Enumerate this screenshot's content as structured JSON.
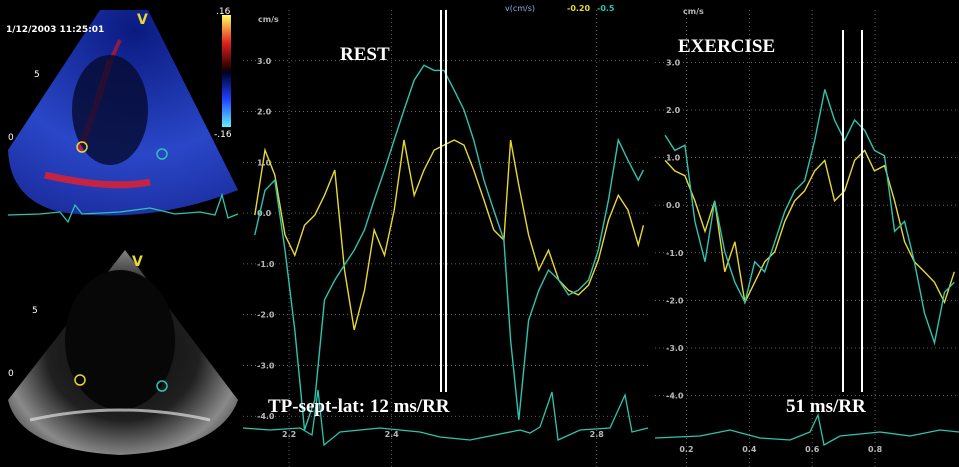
{
  "left_panel": {
    "timestamp": "1/12/2003 11:25:01",
    "doppler_marker": "V",
    "color_max": ".16",
    "color_min": "-.16",
    "doppler_depth_5": "5",
    "doppler_depth_0": "0",
    "bmode_marker": "V",
    "bmode_depth_5": "5",
    "bmode_depth_0": "0"
  },
  "readout": {
    "label": "v(cm/s)",
    "septal": "-0.20",
    "lateral": "-0.5"
  },
  "chart_data": [
    {
      "type": "line",
      "title": "REST",
      "annotation": "TP-sept-lat: 12 ms/RR",
      "ylabel": "cm/s",
      "grid": true,
      "xlim": [
        2.11,
        2.9
      ],
      "ylim": [
        -5,
        4
      ],
      "xticks": [
        2.2,
        2.4,
        2.8
      ],
      "yticks": [
        {
          "value": 3,
          "label": "3.0"
        },
        {
          "value": 2,
          "label": "2.0"
        },
        {
          "value": 1,
          "label": "1.0"
        },
        {
          "value": 0,
          "label": "0.0"
        },
        {
          "value": -1,
          "label": "-1.0"
        },
        {
          "value": -2,
          "label": "-2.0"
        },
        {
          "value": -3,
          "label": "-3.0"
        },
        {
          "value": -4,
          "label": "-4.0"
        }
      ],
      "x": [
        2.133,
        2.153,
        2.172,
        2.192,
        2.211,
        2.23,
        2.25,
        2.269,
        2.289,
        2.308,
        2.327,
        2.347,
        2.366,
        2.386,
        2.405,
        2.424,
        2.444,
        2.463,
        2.483,
        2.502,
        2.522,
        2.541,
        2.56,
        2.58,
        2.599,
        2.619,
        2.632,
        2.648,
        2.667,
        2.687,
        2.706,
        2.726,
        2.745,
        2.764,
        2.784,
        2.803,
        2.823,
        2.842,
        2.861,
        2.881,
        2.891
      ],
      "series": [
        {
          "color": "#e8d830",
          "values": [
            -0.04,
            1.24,
            0.75,
            -0.43,
            -0.83,
            -0.24,
            -0.04,
            0.35,
            0.85,
            -1.12,
            -2.3,
            -1.52,
            -0.33,
            -0.83,
            0.06,
            1.44,
            0.35,
            0.85,
            1.24,
            1.34,
            1.44,
            1.34,
            0.85,
            0.26,
            -0.33,
            -0.53,
            1.44,
            0.55,
            -0.43,
            -1.12,
            -0.73,
            -1.32,
            -1.52,
            -1.61,
            -1.42,
            -0.93,
            -0.14,
            0.35,
            0.06,
            -0.63,
            -0.24
          ]
        },
        {
          "color": "#2ec4b0",
          "values": [
            -0.43,
            0.45,
            0.65,
            -0.73,
            -2.3,
            -4.27,
            -3.68,
            -1.71,
            -1.32,
            -1.02,
            -0.73,
            -0.33,
            0.26,
            0.85,
            1.44,
            2.03,
            2.62,
            2.91,
            2.81,
            2.81,
            2.42,
            2.03,
            1.44,
            0.65,
            0.06,
            -0.53,
            -2.5,
            -4.07,
            -2.11,
            -1.52,
            -1.12,
            -1.32,
            -1.61,
            -1.52,
            -1.32,
            -0.73,
            0.26,
            1.44,
            1.04,
            0.65,
            0.85
          ]
        }
      ]
    },
    {
      "type": "line",
      "title": "EXERCISE",
      "annotation": "51 ms/RR",
      "ylabel": "cm/s",
      "grid": true,
      "xlim": [
        0.1,
        1.067
      ],
      "ylim": [
        -5.5,
        4.1
      ],
      "xticks": [
        0.2,
        0.4,
        0.6,
        0.8
      ],
      "yticks": [
        {
          "value": 3,
          "label": "3.0"
        },
        {
          "value": 2,
          "label": "2.0"
        },
        {
          "value": 1,
          "label": "1.0"
        },
        {
          "value": 0,
          "label": "0.0"
        },
        {
          "value": -1,
          "label": "-1.0"
        },
        {
          "value": -2,
          "label": "-2.0"
        },
        {
          "value": -3,
          "label": "-3.0"
        },
        {
          "value": -4,
          "label": "-4.0"
        }
      ],
      "x": [
        0.132,
        0.163,
        0.195,
        0.227,
        0.259,
        0.29,
        0.322,
        0.354,
        0.386,
        0.417,
        0.449,
        0.481,
        0.513,
        0.544,
        0.576,
        0.608,
        0.64,
        0.671,
        0.703,
        0.735,
        0.767,
        0.798,
        0.83,
        0.862,
        0.894,
        0.925,
        0.957,
        0.989,
        1.021,
        1.052
      ],
      "series": [
        {
          "color": "#e8d830",
          "values": [
            0.94,
            0.72,
            0.62,
            0.09,
            -0.55,
            0.09,
            -1.4,
            -0.77,
            -2.04,
            -1.62,
            -1.19,
            -0.98,
            -0.34,
            0.09,
            0.3,
            0.72,
            0.94,
            0.09,
            0.3,
            0.94,
            1.15,
            0.72,
            0.83,
            0.09,
            -0.77,
            -1.19,
            -1.4,
            -1.62,
            -2.04,
            -1.4
          ]
        },
        {
          "color": "#2ec4b0",
          "values": [
            1.47,
            1.15,
            1.26,
            -0.34,
            -1.19,
            0.09,
            -0.98,
            -1.62,
            -2.04,
            -1.19,
            -1.4,
            -0.77,
            -0.13,
            0.3,
            0.51,
            1.36,
            2.43,
            1.79,
            1.36,
            1.79,
            1.57,
            1.15,
            1.04,
            -0.55,
            -0.34,
            -1.19,
            -2.26,
            -2.89,
            -1.83,
            -1.62
          ]
        }
      ]
    }
  ]
}
